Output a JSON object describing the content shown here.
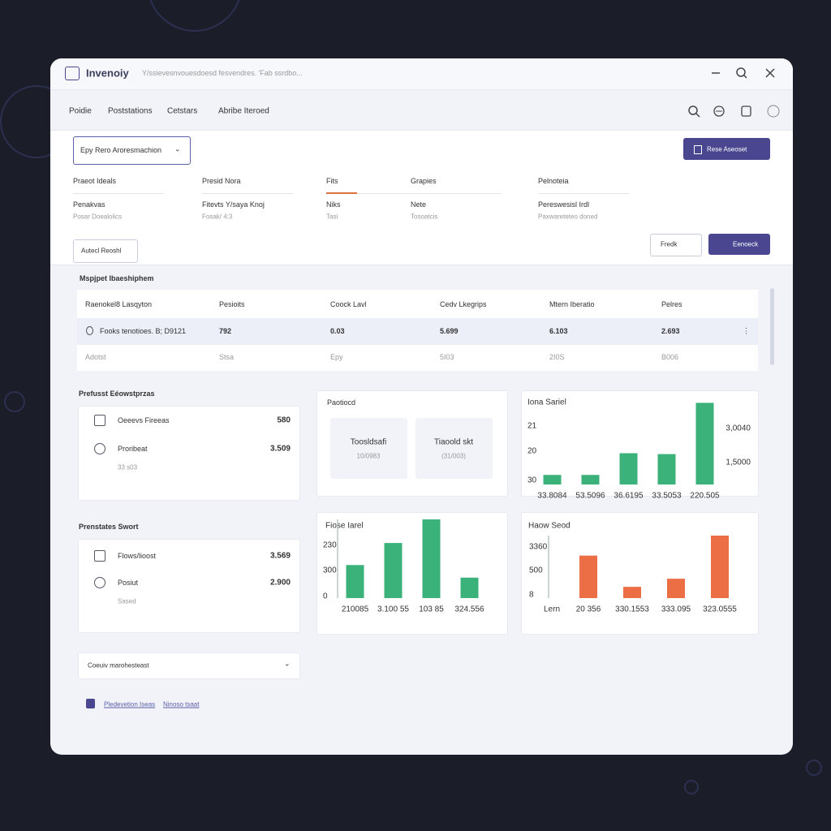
{
  "window": {
    "title": "Invenoiy",
    "path": "Y/ssievesnvouesdoesd fesvendres. 'Fab ssrdbo..."
  },
  "nav": [
    "Poidie",
    "Poststations",
    "Cetstars",
    "Abribe Iteroed"
  ],
  "toolbar": {
    "dropdown": "Epy Rero Aroresmachion",
    "button": "Rese Aseoset"
  },
  "fields": [
    {
      "label": "Praeot Ideals",
      "value": "Penakvas",
      "sub": "Posar Doealolics"
    },
    {
      "label": "Presid Nora",
      "value": "Fitevts Y/saya Knoj",
      "sub": "Fosak/ 4:3"
    },
    {
      "label": "Fits",
      "value": "Niks",
      "sub": "Tasi"
    },
    {
      "label": "Grapies",
      "value": "Nete",
      "sub": "Tosoatcis"
    },
    {
      "label": "Pelnoteia",
      "value": "Pereswesisl Irdl",
      "sub": "Paxwareteteo doned"
    }
  ],
  "actions": {
    "left": "Autecl Reoshl",
    "filter": "Fredk",
    "button": "Eenoeck"
  },
  "table": {
    "title": "Mspjpet Ibaeshiphem",
    "headers": [
      "Raenokel8 Lasqyton",
      "Pesioits",
      "Coock Lavl",
      "Cedv Lkegrips",
      "Mtern Iberatio",
      "Pelres"
    ],
    "rows": [
      [
        "Fooks tenotioes. B; D9121",
        "792",
        "0.03",
        "5.699",
        "6.103",
        "2.693"
      ],
      [
        "Adotst",
        "Stsa",
        "Epy",
        "5I03",
        "2I0S",
        "B006"
      ]
    ]
  },
  "summary": [
    {
      "title": "Prefusst Eéowstprzas",
      "items": [
        {
          "label": "Oeeevs Fireeas",
          "value": "580"
        },
        {
          "label": "Proribeat",
          "value": "3.509",
          "sub": "33 s03"
        }
      ]
    },
    {
      "title": "Prenstates Swort",
      "items": [
        {
          "label": "Flows/lioost",
          "value": "3.569"
        },
        {
          "label": "Posiut",
          "value": "2.900",
          "sub": "Sased"
        }
      ]
    }
  ],
  "tiles": {
    "title": "Paotiocd",
    "items": [
      {
        "label": "Toosldsafi",
        "sub": "10/0983"
      },
      {
        "label": "Tiaoold skt",
        "sub": "(31/003)"
      }
    ]
  },
  "chart_data": [
    {
      "type": "bar",
      "title": "Iona Sariel",
      "categories": [
        "33.8084",
        "53.5096",
        "36.6195",
        "33.5053",
        "220.505"
      ],
      "values": [
        11,
        11,
        36,
        35,
        94
      ],
      "color": "#3bb27a",
      "ylim": [
        0,
        100
      ],
      "y_labels": [
        "21",
        "20",
        "30"
      ],
      "y2_labels": [
        "3,0040",
        "1,5000"
      ]
    },
    {
      "type": "bar",
      "title": "Fiose Iarel",
      "categories": [
        "210085",
        "3.100 55",
        "103 85",
        "324.556"
      ],
      "values": [
        42,
        70,
        100,
        26
      ],
      "color": "#3bb27a",
      "ylim": [
        0,
        100
      ],
      "y_labels": [
        "230",
        "300",
        "0"
      ]
    },
    {
      "type": "bar",
      "title": "Haow Seod",
      "categories": [
        "20 356",
        "330.1553",
        "333.095",
        "323.0555"
      ],
      "values": [
        68,
        18,
        31,
        100
      ],
      "color": "#ec6e45",
      "ylim": [
        0,
        100
      ],
      "y_labels": [
        "3360",
        "500",
        "8"
      ],
      "xlabel": "Lern"
    }
  ],
  "dropdown": "Coeuiv marohesteast",
  "footer": [
    "Pledevetion Iseas",
    "Ninoso tsaat"
  ]
}
